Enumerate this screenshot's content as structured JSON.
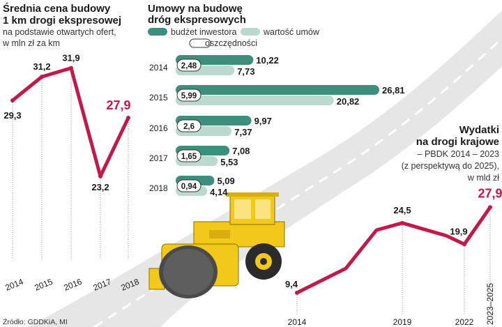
{
  "colors": {
    "line_red": "#c4174a",
    "bar_dark": "#3d8f7c",
    "bar_light": "#bcd9cf",
    "road": "#e6e6e6",
    "roller_yellow": "#f2c81a",
    "roller_dark": "#2b2b2b",
    "drop_line": "#888888"
  },
  "chart_data": [
    {
      "type": "line",
      "title": "Średnia cena budowy",
      "title2": "1 km drogi ekspresowej",
      "subtitle": "na podstawie otwartych ofert,",
      "subtitle2": "w mln zł za km",
      "x": [
        "2014",
        "2015",
        "2016",
        "2017",
        "2018"
      ],
      "values": [
        29.3,
        31.2,
        31.9,
        23.2,
        27.9
      ],
      "labels": [
        "29,3",
        "31,2",
        "31,9",
        "23,2",
        "27,9"
      ],
      "highlight_last": true
    },
    {
      "type": "bar",
      "title": "Umowy na budowę",
      "title2": "dróg ekspresowych",
      "legend": [
        "budżet inwestora",
        "wartość umów",
        "oszczędności"
      ],
      "categories": [
        "2014",
        "2015",
        "2016",
        "2017",
        "2018"
      ],
      "series": [
        {
          "name": "budżet inwestora",
          "values": [
            10.22,
            26.81,
            9.97,
            7.08,
            5.09
          ],
          "labels": [
            "10,22",
            "26,81",
            "9,97",
            "7,08",
            "5,09"
          ]
        },
        {
          "name": "wartość umów",
          "values": [
            7.73,
            20.82,
            7.37,
            5.53,
            4.14
          ],
          "labels": [
            "7,73",
            "20,82",
            "7,37",
            "5,53",
            "4,14"
          ]
        },
        {
          "name": "oszczędności",
          "values": [
            2.48,
            5.99,
            2.6,
            1.65,
            0.94
          ],
          "labels": [
            "2,48",
            "5,99",
            "2,6",
            "1,65",
            "0,94"
          ]
        }
      ]
    },
    {
      "type": "line",
      "title": "Wydatki",
      "title2": "na drogi krajowe",
      "subtitle": "– PBDK 2014 – 2023",
      "subtitle2": "(z perspektywą do 2025),",
      "subtitle3": "w mld zł",
      "x": [
        "2014",
        "2019",
        "2022",
        "2023–2025"
      ],
      "values": [
        9.4,
        24.5,
        19.9,
        27.9
      ],
      "labels": [
        "9,4",
        "24,5",
        "19,9",
        "27,9"
      ],
      "highlight_last": true
    }
  ],
  "source": "Źródło: GDDKiA, MI"
}
